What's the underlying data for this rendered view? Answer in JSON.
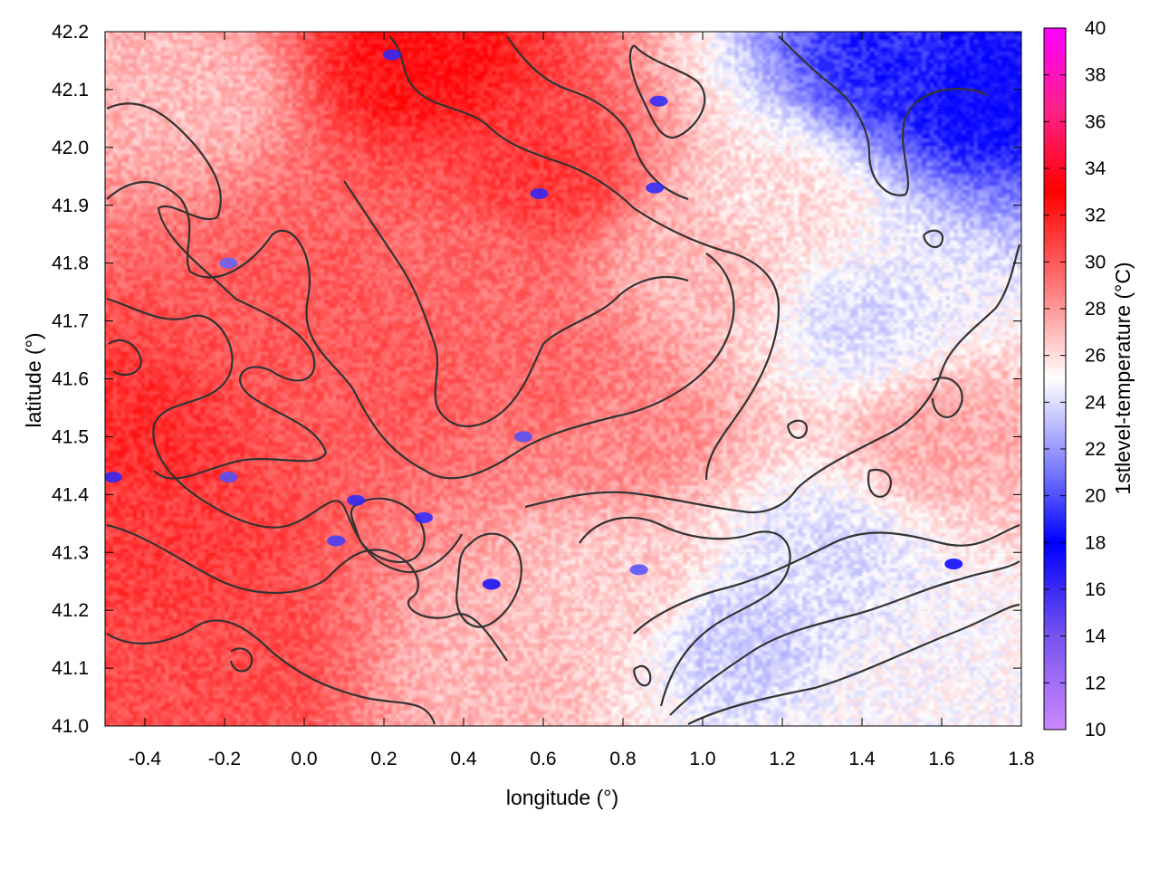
{
  "chart_data": {
    "type": "heatmap",
    "xlabel": "longitude (°)",
    "ylabel": "latitude (°)",
    "colorbar_label": "1stlevel-temperature (°C)",
    "xlim": [
      -0.5,
      1.8
    ],
    "ylim": [
      41.0,
      42.2
    ],
    "clim": [
      10,
      40
    ],
    "grid": true,
    "x_ticks": [
      {
        "value": -0.4,
        "label": "-0.4"
      },
      {
        "value": -0.2,
        "label": "-0.2"
      },
      {
        "value": 0.0,
        "label": "0.0"
      },
      {
        "value": 0.2,
        "label": "0.2"
      },
      {
        "value": 0.4,
        "label": "0.4"
      },
      {
        "value": 0.6,
        "label": "0.6"
      },
      {
        "value": 0.8,
        "label": "0.8"
      },
      {
        "value": 1.0,
        "label": "1.0"
      },
      {
        "value": 1.2,
        "label": "1.2"
      },
      {
        "value": 1.4,
        "label": "1.4"
      },
      {
        "value": 1.6,
        "label": "1.6"
      },
      {
        "value": 1.8,
        "label": "1.8"
      }
    ],
    "y_ticks": [
      {
        "value": 41.0,
        "label": "41.0"
      },
      {
        "value": 41.1,
        "label": "41.1"
      },
      {
        "value": 41.2,
        "label": "41.2"
      },
      {
        "value": 41.3,
        "label": "41.3"
      },
      {
        "value": 41.4,
        "label": "41.4"
      },
      {
        "value": 41.5,
        "label": "41.5"
      },
      {
        "value": 41.6,
        "label": "41.6"
      },
      {
        "value": 41.7,
        "label": "41.7"
      },
      {
        "value": 41.8,
        "label": "41.8"
      },
      {
        "value": 41.9,
        "label": "41.9"
      },
      {
        "value": 42.0,
        "label": "42.0"
      },
      {
        "value": 42.1,
        "label": "42.1"
      },
      {
        "value": 42.2,
        "label": "42.2"
      }
    ],
    "colorbar_ticks": [
      {
        "value": 10,
        "label": "10"
      },
      {
        "value": 12,
        "label": "12"
      },
      {
        "value": 14,
        "label": "14"
      },
      {
        "value": 16,
        "label": "16"
      },
      {
        "value": 18,
        "label": "18"
      },
      {
        "value": 20,
        "label": "20"
      },
      {
        "value": 22,
        "label": "22"
      },
      {
        "value": 24,
        "label": "24"
      },
      {
        "value": 26,
        "label": "26"
      },
      {
        "value": 28,
        "label": "28"
      },
      {
        "value": 30,
        "label": "30"
      },
      {
        "value": 32,
        "label": "32"
      },
      {
        "value": 34,
        "label": "34"
      },
      {
        "value": 36,
        "label": "36"
      },
      {
        "value": 38,
        "label": "38"
      },
      {
        "value": 40,
        "label": "40"
      }
    ],
    "colormap": [
      {
        "value": 10,
        "color": "#cc88ff"
      },
      {
        "value": 14,
        "color": "#7755ee"
      },
      {
        "value": 18,
        "color": "#0000ff"
      },
      {
        "value": 21,
        "color": "#7777ff"
      },
      {
        "value": 25,
        "color": "#ffffff"
      },
      {
        "value": 29,
        "color": "#ff7777"
      },
      {
        "value": 33,
        "color": "#ff0000"
      },
      {
        "value": 36.5,
        "color": "#ff2288"
      },
      {
        "value": 40,
        "color": "#ff00ff"
      }
    ],
    "field": {
      "description_of_pattern": "warm (~28-31 °C) over western/central land, cooler (~22-25 °C) to the east/south-east sea",
      "samples": [
        {
          "lon": -0.45,
          "lat": 41.5,
          "value": 31.5
        },
        {
          "lon": -0.3,
          "lat": 41.3,
          "value": 31.0
        },
        {
          "lon": -0.2,
          "lat": 41.1,
          "value": 30.5
        },
        {
          "lon": 0.0,
          "lat": 41.7,
          "value": 30.0
        },
        {
          "lon": 0.2,
          "lat": 41.6,
          "value": 30.0
        },
        {
          "lon": 0.4,
          "lat": 41.8,
          "value": 29.5
        },
        {
          "lon": 0.6,
          "lat": 41.6,
          "value": 29.5
        },
        {
          "lon": 0.3,
          "lat": 42.15,
          "value": 32.5
        },
        {
          "lon": -0.3,
          "lat": 42.1,
          "value": 27.0
        },
        {
          "lon": 0.6,
          "lat": 41.95,
          "value": 31.0
        },
        {
          "lon": 0.8,
          "lat": 41.5,
          "value": 28.5
        },
        {
          "lon": 1.0,
          "lat": 41.8,
          "value": 27.0
        },
        {
          "lon": 1.2,
          "lat": 41.9,
          "value": 26.0
        },
        {
          "lon": 1.5,
          "lat": 42.15,
          "value": 19.0
        },
        {
          "lon": 1.7,
          "lat": 42.1,
          "value": 18.0
        },
        {
          "lon": 1.4,
          "lat": 41.7,
          "value": 24.0
        },
        {
          "lon": 1.6,
          "lat": 41.5,
          "value": 27.5
        },
        {
          "lon": 1.3,
          "lat": 41.3,
          "value": 24.0
        },
        {
          "lon": 1.1,
          "lat": 41.15,
          "value": 23.5
        },
        {
          "lon": 1.5,
          "lat": 41.05,
          "value": 25.0
        },
        {
          "lon": 0.5,
          "lat": 41.1,
          "value": 27.0
        },
        {
          "lon": 0.8,
          "lat": 41.25,
          "value": 26.5
        }
      ],
      "cool_spots": [
        {
          "lon": 0.13,
          "lat": 41.39,
          "value": 19.0
        },
        {
          "lon": 0.08,
          "lat": 41.32,
          "value": 19.5
        },
        {
          "lon": 0.3,
          "lat": 41.36,
          "value": 19.0
        },
        {
          "lon": 0.47,
          "lat": 41.245,
          "value": 17.5
        },
        {
          "lon": 0.59,
          "lat": 41.92,
          "value": 19.0
        },
        {
          "lon": 0.88,
          "lat": 41.93,
          "value": 19.0
        },
        {
          "lon": 0.89,
          "lat": 42.08,
          "value": 19.0
        },
        {
          "lon": 0.22,
          "lat": 42.16,
          "value": 19.0
        },
        {
          "lon": 1.31,
          "lat": 42.14,
          "value": 19.0
        },
        {
          "lon": 0.84,
          "lat": 41.27,
          "value": 20.0
        },
        {
          "lon": -0.48,
          "lat": 41.43,
          "value": 19.0
        },
        {
          "lon": 1.63,
          "lat": 41.28,
          "value": 18.0
        },
        {
          "lon": -0.19,
          "lat": 41.43,
          "value": 20.0
        },
        {
          "lon": 0.55,
          "lat": 41.5,
          "value": 20.0
        },
        {
          "lon": -0.19,
          "lat": 41.8,
          "value": 20.5
        }
      ]
    }
  }
}
